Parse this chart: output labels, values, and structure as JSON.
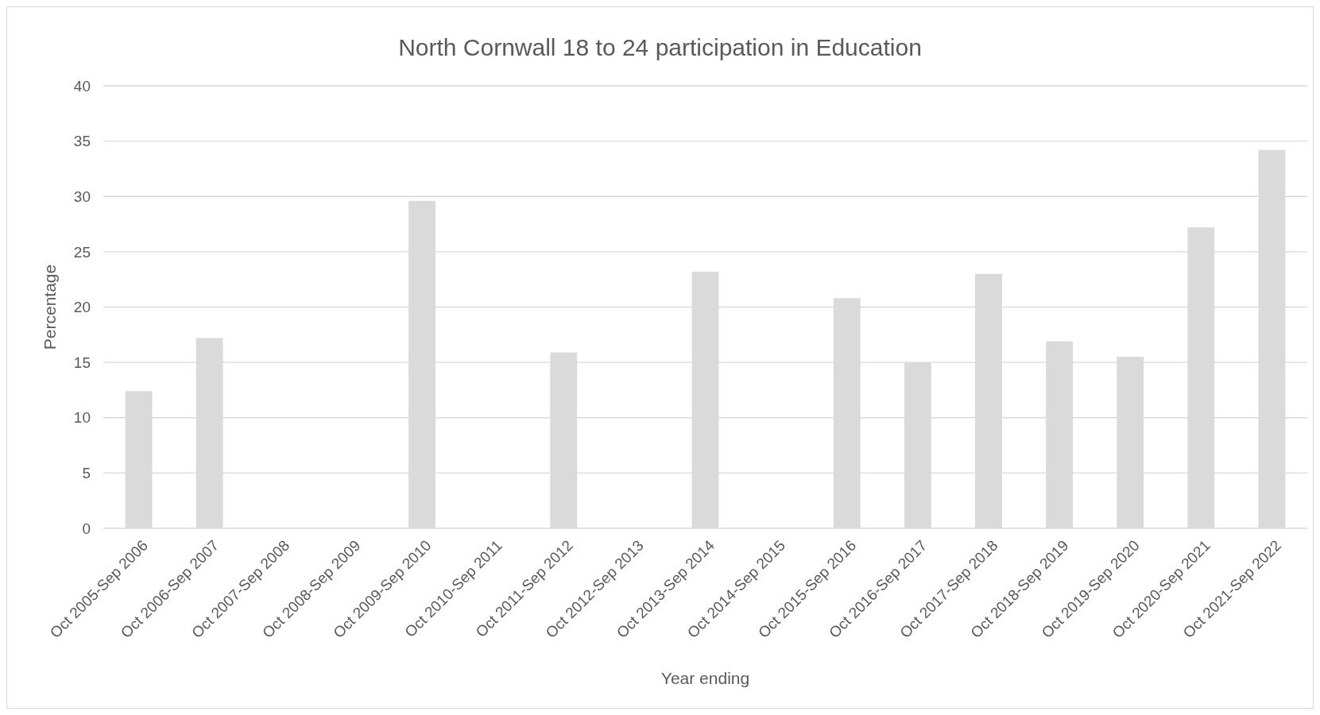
{
  "chart_data": {
    "type": "bar",
    "title": "North Cornwall 18 to 24 participation in Education",
    "xlabel": "Year ending",
    "ylabel": "Percentage",
    "categories": [
      "Oct 2005-Sep 2006",
      "Oct 2006-Sep 2007",
      "Oct 2007-Sep 2008",
      "Oct 2008-Sep 2009",
      "Oct 2009-Sep 2010",
      "Oct 2010-Sep 2011",
      "Oct 2011-Sep 2012",
      "Oct 2012-Sep 2013",
      "Oct 2013-Sep 2014",
      "Oct 2014-Sep 2015",
      "Oct 2015-Sep 2016",
      "Oct 2016-Sep 2017",
      "Oct 2017-Sep 2018",
      "Oct 2018-Sep 2019",
      "Oct 2019-Sep 2020",
      "Oct 2020-Sep 2021",
      "Oct 2021-Sep 2022"
    ],
    "values": [
      12.4,
      17.2,
      null,
      null,
      29.6,
      null,
      15.9,
      null,
      23.2,
      null,
      20.8,
      15.0,
      23.0,
      16.9,
      15.5,
      27.2,
      34.2
    ],
    "color": "#dadada",
    "ylim": [
      0,
      40
    ],
    "yticks": [
      0,
      5,
      10,
      15,
      20,
      25,
      30,
      35,
      40
    ],
    "grid": "y"
  }
}
